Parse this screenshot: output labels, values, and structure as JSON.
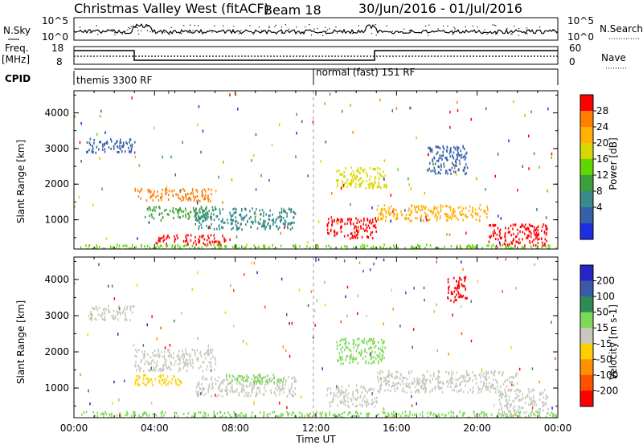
{
  "header": {
    "station": "Christmas Valley West (fitACF)",
    "beam": "Beam 18",
    "date_range": "30/Jun/2016 - 01/Jul/2016"
  },
  "panels": {
    "noise": {
      "left_label": "N.Sky",
      "right_label": "N.Search",
      "left_ticks": [
        "10^5",
        "10^0"
      ],
      "right_ticks": [
        "10^5",
        "10^0"
      ]
    },
    "freq": {
      "left_label_1": "Freq.",
      "left_label_2": "[MHz]",
      "right_label": "Nave",
      "left_ticks": [
        "18",
        "8"
      ],
      "right_ticks": [
        "60",
        "0"
      ]
    },
    "cpid": {
      "label": "CPID",
      "segments": [
        "themis 3300 RF",
        "normal (fast) 151 RF"
      ]
    }
  },
  "chart_data": [
    {
      "type": "heatmap",
      "title": "",
      "xlabel": "",
      "ylabel": "Slant Range [km]",
      "colorbar_label": "Power [dB]",
      "colorbar_ticks": [
        "28",
        "24",
        "20",
        "16",
        "12",
        "8",
        "4"
      ],
      "colorbar_colors": [
        "#ff0000",
        "#ff7f00",
        "#ffb000",
        "#d8d800",
        "#5fd800",
        "#3ca03c",
        "#3a8a8a",
        "#3860a8",
        "#1d2ee0"
      ],
      "colorbar_range": [
        0,
        32
      ],
      "y_ticks": [
        "1000",
        "2000",
        "3000",
        "4000"
      ],
      "ylim": [
        180,
        4620
      ],
      "xlim": [
        0,
        24
      ],
      "blobs": [
        {
          "t0": 0.6,
          "t1": 3.0,
          "r0": 2900,
          "r1": 3300,
          "color": "#3860a8"
        },
        {
          "t0": 3.0,
          "t1": 6.8,
          "r0": 1550,
          "r1": 1900,
          "color": "#ff7f00"
        },
        {
          "t0": 3.5,
          "t1": 7.0,
          "r0": 1050,
          "r1": 1400,
          "color": "#3ca03c"
        },
        {
          "t0": 4.0,
          "t1": 7.5,
          "r0": 330,
          "r1": 600,
          "color": "#ff0000"
        },
        {
          "t0": 6.0,
          "t1": 11.0,
          "r0": 750,
          "r1": 1350,
          "color": "#3a8a8a"
        },
        {
          "t0": 0.3,
          "t1": 24.0,
          "r0": 190,
          "r1": 330,
          "color": "#5fd800"
        },
        {
          "t0": 13.0,
          "t1": 15.5,
          "r0": 1900,
          "r1": 2500,
          "color": "#d8d800"
        },
        {
          "t0": 12.5,
          "t1": 15.0,
          "r0": 500,
          "r1": 1100,
          "color": "#ff0000"
        },
        {
          "t0": 15.0,
          "t1": 20.5,
          "r0": 1000,
          "r1": 1450,
          "color": "#ffb000"
        },
        {
          "t0": 20.5,
          "t1": 23.5,
          "r0": 300,
          "r1": 900,
          "color": "#ff0000"
        },
        {
          "t0": 17.5,
          "t1": 19.5,
          "r0": 2300,
          "r1": 3100,
          "color": "#3860a8"
        }
      ]
    },
    {
      "type": "heatmap",
      "title": "",
      "xlabel": "Time UT",
      "ylabel": "Slant Range [km]",
      "colorbar_label": "Velocity [m s-1]",
      "colorbar_ticks": [
        "200",
        "100",
        "50",
        "15",
        "-15",
        "-50",
        "-100",
        "-200"
      ],
      "colorbar_colors": [
        "#2626c8",
        "#3a5aa8",
        "#2e8b57",
        "#7ed957",
        "#c8c8c0",
        "#ffd000",
        "#ff9000",
        "#ff5000",
        "#ff0000"
      ],
      "y_ticks": [
        "1000",
        "2000",
        "3000",
        "4000"
      ],
      "ylim": [
        180,
        4620
      ],
      "xlim": [
        0,
        24
      ],
      "x_ticks": [
        "00:00",
        "04:00",
        "08:00",
        "12:00",
        "16:00",
        "20:00",
        "00:00"
      ],
      "blobs": [
        {
          "t0": 0.6,
          "t1": 3.0,
          "r0": 2900,
          "r1": 3300,
          "color": "#c8c8c0"
        },
        {
          "t0": 3.0,
          "t1": 7.0,
          "r0": 1500,
          "r1": 2100,
          "color": "#c8c8c0"
        },
        {
          "t0": 3.0,
          "t1": 5.5,
          "r0": 1100,
          "r1": 1400,
          "color": "#ffd000"
        },
        {
          "t0": 6.0,
          "t1": 11.0,
          "r0": 800,
          "r1": 1350,
          "color": "#c8c8c0"
        },
        {
          "t0": 7.5,
          "t1": 10.5,
          "r0": 1150,
          "r1": 1400,
          "color": "#7ed957"
        },
        {
          "t0": 0.3,
          "t1": 24.0,
          "r0": 190,
          "r1": 380,
          "color": "#7ed957"
        },
        {
          "t0": 13.0,
          "t1": 15.5,
          "r0": 1700,
          "r1": 2400,
          "color": "#7ed957"
        },
        {
          "t0": 12.5,
          "t1": 15.0,
          "r0": 500,
          "r1": 1100,
          "color": "#c8c8c0"
        },
        {
          "t0": 15.0,
          "t1": 22.0,
          "r0": 900,
          "r1": 1500,
          "color": "#c8c8c0"
        },
        {
          "t0": 21.0,
          "t1": 23.5,
          "r0": 300,
          "r1": 1000,
          "color": "#c8c8c0"
        },
        {
          "t0": 18.5,
          "t1": 19.5,
          "r0": 3400,
          "r1": 4100,
          "color": "#ff0000"
        }
      ]
    }
  ]
}
